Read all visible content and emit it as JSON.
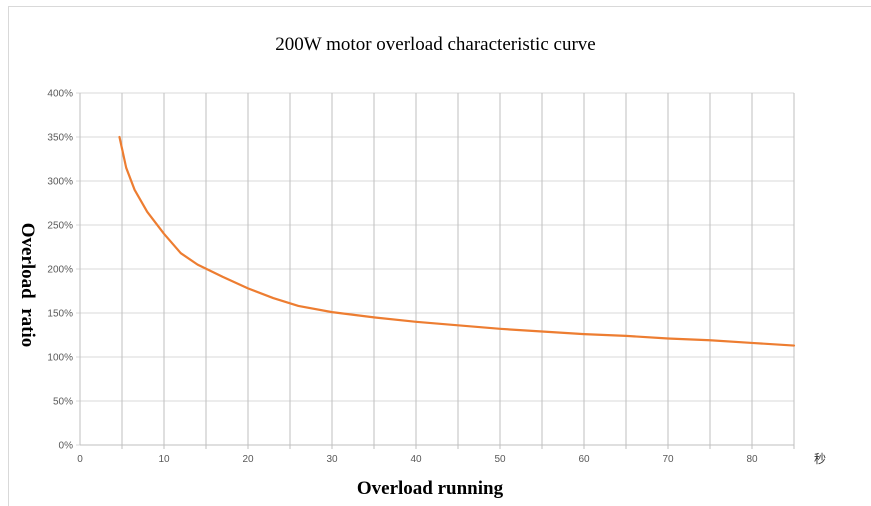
{
  "chart_data": {
    "type": "line",
    "title": "200W motor overload characteristic curve",
    "xlabel": "Overload running",
    "ylabel": "Overload  ratio",
    "x_unit_label": "秒",
    "xlim": [
      0,
      85
    ],
    "ylim": [
      0,
      400
    ],
    "x_ticks": [
      "0",
      "10",
      "20",
      "30",
      "40",
      "50",
      "60",
      "70",
      "80"
    ],
    "y_ticks": [
      "0%",
      "50%",
      "100%",
      "150%",
      "200%",
      "250%",
      "300%",
      "350%",
      "400%"
    ],
    "x_gridlines": [
      5,
      10,
      15,
      20,
      25,
      30,
      35,
      40,
      45,
      50,
      55,
      60,
      65,
      70,
      75,
      80,
      85
    ],
    "grid": true,
    "legend": "none",
    "line_color": "#ed7d31",
    "series": [
      {
        "x": [
          4.7,
          5.5,
          6.5,
          8,
          10,
          12,
          14,
          17,
          20,
          23,
          26,
          30,
          35,
          40,
          45,
          50,
          55,
          60,
          65,
          70,
          75,
          80,
          85
        ],
        "values": [
          350,
          315,
          290,
          265,
          240,
          218,
          205,
          191,
          178,
          167,
          158,
          151,
          145,
          140,
          136,
          132,
          129,
          126,
          124,
          121,
          119,
          116,
          113
        ]
      }
    ]
  }
}
